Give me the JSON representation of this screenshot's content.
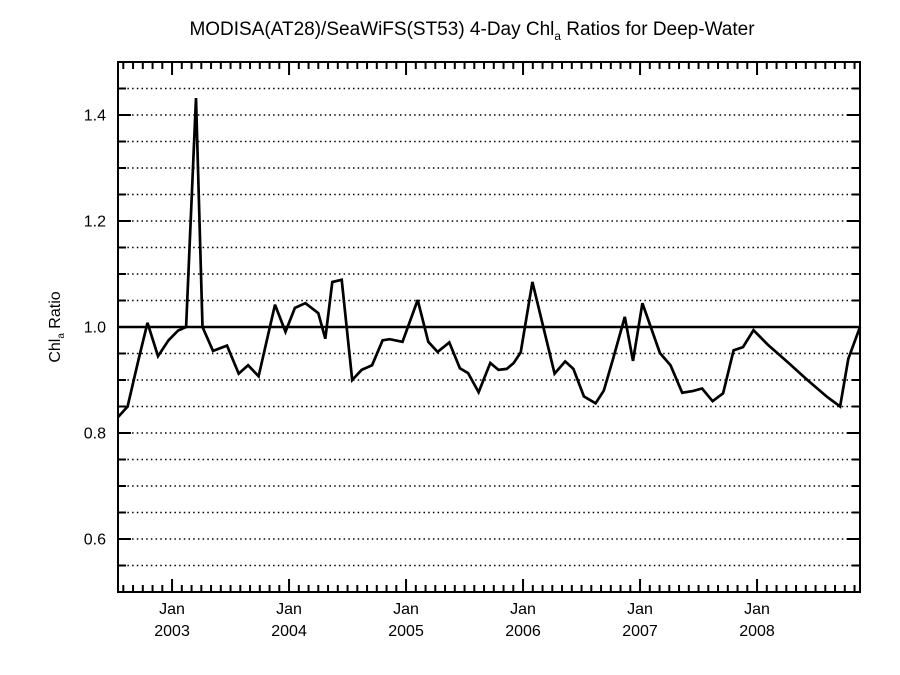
{
  "figure": {
    "background_color": "#ffffff",
    "foreground_color": "#000000"
  },
  "chart_data": {
    "type": "line",
    "title": {
      "pre": "MODISA(AT28)/SeaWiFS(ST53) 4-Day Chl",
      "sub": "a",
      "post": " Ratios for Deep-Water"
    },
    "ylabel": {
      "pre": "Chl",
      "sub": "a",
      "post": " Ratio"
    },
    "xlabel": "",
    "xlim": [
      2002.538,
      2008.88
    ],
    "ylim": [
      0.5,
      1.5
    ],
    "grid": "horizontal dotted every 0.05, solid reference at 1.0",
    "legend": "none",
    "reference_line_y": 1.0,
    "y_major_ticks": [
      0.6,
      0.8,
      1.0,
      1.2,
      1.4
    ],
    "y_tick_labels": [
      "0.6",
      "0.8",
      "1.0",
      "1.2",
      "1.4"
    ],
    "y_grid_step": 0.05,
    "x_minor_tick_unit": "month",
    "x_major_ticks": [
      {
        "t": 2003,
        "line1": "Jan",
        "line2": "2003"
      },
      {
        "t": 2004,
        "line1": "Jan",
        "line2": "2004"
      },
      {
        "t": 2005,
        "line1": "Jan",
        "line2": "2005"
      },
      {
        "t": 2006,
        "line1": "Jan",
        "line2": "2006"
      },
      {
        "t": 2007,
        "line1": "Jan",
        "line2": "2007"
      },
      {
        "t": 2008,
        "line1": "Jan",
        "line2": "2008"
      }
    ],
    "series": [
      {
        "name": "MODISA(AT28)/SeaWiFS(ST53) 4-day deep-water Chl_a ratio",
        "color": "#000000",
        "points": [
          [
            2002.538,
            0.83
          ],
          [
            2002.62,
            0.85
          ],
          [
            2002.71,
            0.935
          ],
          [
            2002.79,
            1.008
          ],
          [
            2002.88,
            0.945
          ],
          [
            2002.97,
            0.975
          ],
          [
            2003.05,
            0.993
          ],
          [
            2003.12,
            1.0
          ],
          [
            2003.205,
            1.432
          ],
          [
            2003.26,
            1.0
          ],
          [
            2003.35,
            0.955
          ],
          [
            2003.47,
            0.965
          ],
          [
            2003.57,
            0.912
          ],
          [
            2003.65,
            0.928
          ],
          [
            2003.74,
            0.907
          ],
          [
            2003.88,
            1.042
          ],
          [
            2003.97,
            0.991
          ],
          [
            2004.05,
            1.036
          ],
          [
            2004.14,
            1.045
          ],
          [
            2004.25,
            1.026
          ],
          [
            2004.31,
            0.978
          ],
          [
            2004.37,
            1.085
          ],
          [
            2004.45,
            1.089
          ],
          [
            2004.54,
            0.9
          ],
          [
            2004.62,
            0.919
          ],
          [
            2004.71,
            0.928
          ],
          [
            2004.8,
            0.975
          ],
          [
            2004.86,
            0.977
          ],
          [
            2004.97,
            0.972
          ],
          [
            2005.1,
            1.051
          ],
          [
            2005.19,
            0.972
          ],
          [
            2005.27,
            0.953
          ],
          [
            2005.37,
            0.971
          ],
          [
            2005.46,
            0.922
          ],
          [
            2005.53,
            0.913
          ],
          [
            2005.62,
            0.877
          ],
          [
            2005.72,
            0.932
          ],
          [
            2005.79,
            0.919
          ],
          [
            2005.86,
            0.921
          ],
          [
            2005.92,
            0.932
          ],
          [
            2005.98,
            0.952
          ],
          [
            2006.08,
            1.085
          ],
          [
            2006.27,
            0.912
          ],
          [
            2006.36,
            0.935
          ],
          [
            2006.43,
            0.921
          ],
          [
            2006.52,
            0.869
          ],
          [
            2006.62,
            0.856
          ],
          [
            2006.69,
            0.88
          ],
          [
            2006.77,
            0.94
          ],
          [
            2006.87,
            1.019
          ],
          [
            2006.94,
            0.936
          ],
          [
            2007.02,
            1.045
          ],
          [
            2007.17,
            0.951
          ],
          [
            2007.26,
            0.928
          ],
          [
            2007.36,
            0.876
          ],
          [
            2007.45,
            0.879
          ],
          [
            2007.53,
            0.884
          ],
          [
            2007.62,
            0.86
          ],
          [
            2007.71,
            0.875
          ],
          [
            2007.8,
            0.956
          ],
          [
            2007.88,
            0.962
          ],
          [
            2007.97,
            0.994
          ],
          [
            2008.09,
            0.967
          ],
          [
            2008.26,
            0.934
          ],
          [
            2008.43,
            0.9
          ],
          [
            2008.6,
            0.868
          ],
          [
            2008.71,
            0.85
          ],
          [
            2008.78,
            0.94
          ],
          [
            2008.88,
            1.0
          ]
        ]
      }
    ]
  }
}
